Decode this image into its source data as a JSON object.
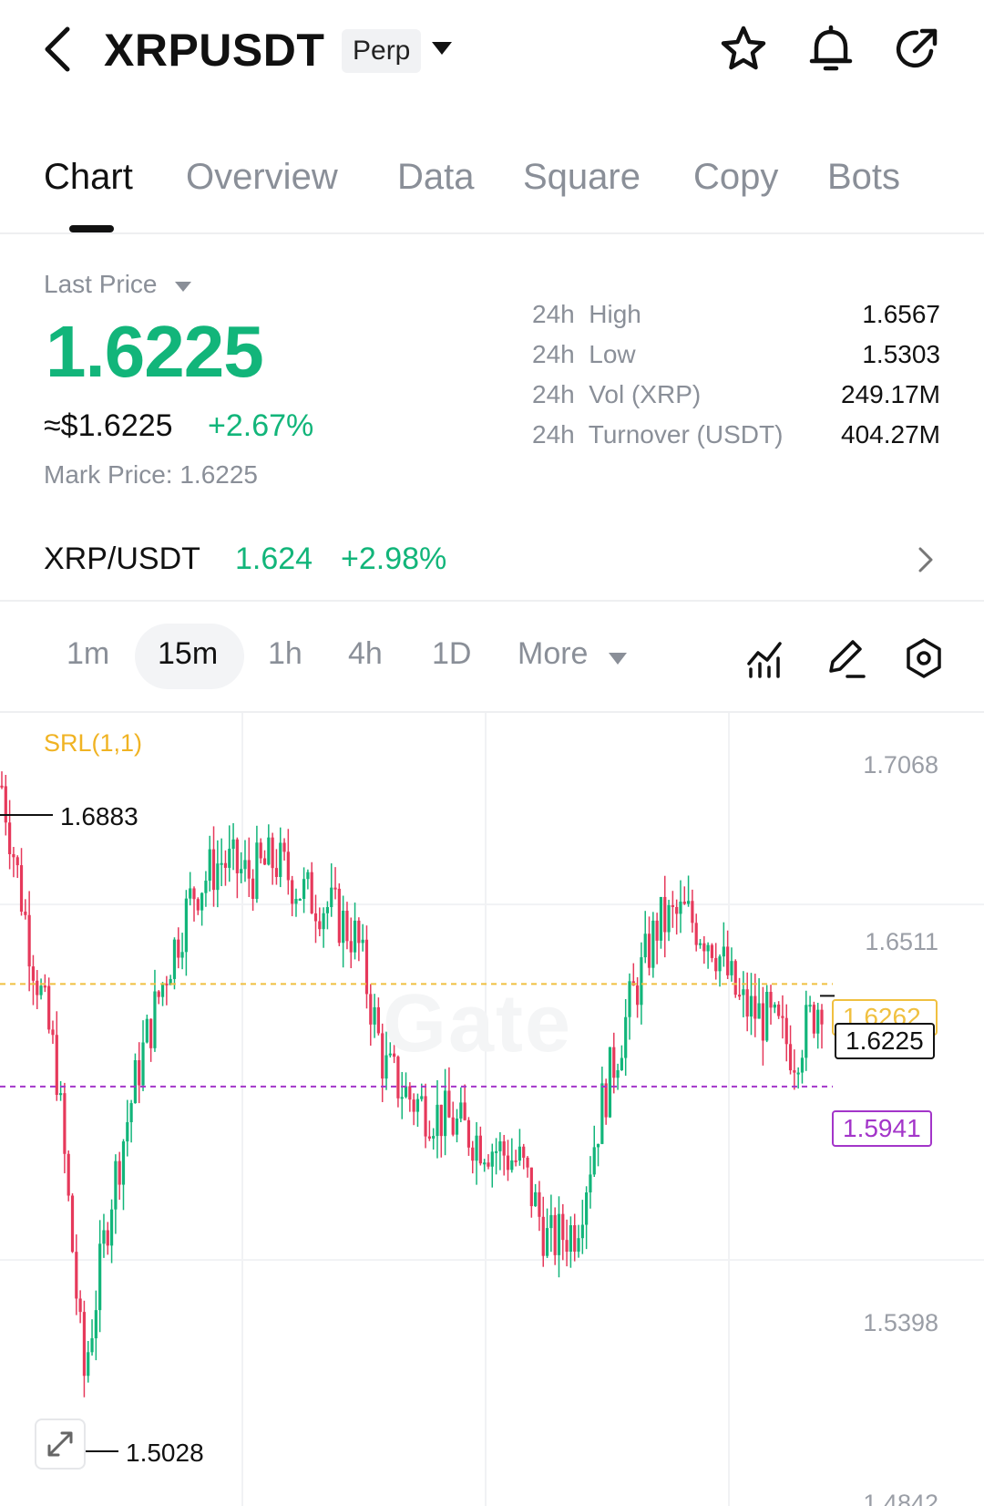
{
  "header": {
    "symbol": "XRPUSDT",
    "badge": "Perp",
    "icons": [
      "back-arrow-icon",
      "chevron-down-icon",
      "star-icon",
      "bell-icon",
      "share-icon"
    ]
  },
  "tabs": [
    {
      "label": "Chart",
      "active": true
    },
    {
      "label": "Overview",
      "active": false
    },
    {
      "label": "Data",
      "active": false
    },
    {
      "label": "Square",
      "active": false
    },
    {
      "label": "Copy",
      "active": false
    },
    {
      "label": "Bots",
      "active": false
    }
  ],
  "price": {
    "last_price_label": "Last Price",
    "last_price": "1.6225",
    "approx_usd": "≈$1.6225",
    "change_pct": "+2.67%",
    "mark_price": "Mark Price:  1.6225",
    "color_up": "#12b57a"
  },
  "stats": [
    {
      "label": "24h  High",
      "value": "1.6567"
    },
    {
      "label": "24h  Low",
      "value": "1.5303"
    },
    {
      "label": "24h  Vol (XRP)",
      "value": "249.17M"
    },
    {
      "label": "24h  Turnover (USDT)",
      "value": "404.27M"
    }
  ],
  "spot": {
    "pair": "XRP/USDT",
    "price": "1.624",
    "change_pct": "+2.98%"
  },
  "intervals": [
    {
      "label": "1m",
      "active": false
    },
    {
      "label": "15m",
      "active": true
    },
    {
      "label": "1h",
      "active": false
    },
    {
      "label": "4h",
      "active": false
    },
    {
      "label": "1D",
      "active": false
    },
    {
      "label": "More",
      "active": false
    }
  ],
  "tools": [
    "indicator-icon",
    "draw-pen-icon",
    "settings-icon"
  ],
  "chart": {
    "indicator": "SRL(1,1)",
    "watermark": "Gate",
    "y_ticks": [
      "1.7068",
      "1.6511",
      "1.5398",
      "1.4842"
    ],
    "high_marker": "1.6883",
    "low_marker": "1.5028",
    "level_yellow": "1.6262",
    "level_last": "1.6225",
    "level_purple": "1.5941",
    "color_up": "#12b57a",
    "color_down": "#e6395b"
  },
  "chart_data": {
    "type": "candlestick",
    "interval": "15m",
    "ylim": [
      1.4842,
      1.7068
    ],
    "y_ticks": [
      1.7068,
      1.6511,
      1.5398,
      1.4842
    ],
    "close_path": [
      1.6883,
      1.64,
      1.6,
      1.5028,
      1.56,
      1.6,
      1.63,
      1.655,
      1.665,
      1.66,
      1.665,
      1.655,
      1.65,
      1.64,
      1.6,
      1.59,
      1.585,
      1.58,
      1.575,
      1.57,
      1.545,
      1.55,
      1.59,
      1.62,
      1.645,
      1.648,
      1.64,
      1.62,
      1.615,
      1.605,
      1.6225
    ],
    "levels": [
      {
        "label": "SRL upper",
        "value": 1.6262
      },
      {
        "label": "last",
        "value": 1.6225
      },
      {
        "label": "SRL lower",
        "value": 1.5941
      }
    ],
    "high": 1.6883,
    "low": 1.5028
  }
}
